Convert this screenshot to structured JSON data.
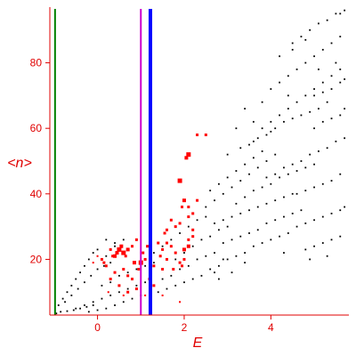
{
  "chart_data": {
    "type": "scatter",
    "xlabel": "E",
    "ylabel": "<n>",
    "xlim": [
      -1.1,
      5.8
    ],
    "ylim": [
      3,
      97
    ],
    "x_ticks": [
      0,
      2,
      4
    ],
    "y_ticks": [
      20,
      40,
      60,
      80
    ],
    "grid": false,
    "colors": {
      "axis": "#e00000",
      "black_series": "#000000",
      "red_series": "#ff0000",
      "line_green": "#008000",
      "line_magenta": "#cc00cc",
      "line_blue": "#0000ff"
    },
    "vertical_lines": [
      {
        "x": -0.98,
        "color": "#008000"
      },
      {
        "x": 1.0,
        "color": "#cc00cc"
      },
      {
        "x": 1.22,
        "color": "#0000ff"
      }
    ],
    "series": [
      {
        "marker": "small-dot",
        "color": "#000000",
        "points": [
          [
            -0.95,
            3.5
          ],
          [
            -0.85,
            4
          ],
          [
            -0.7,
            4.2
          ],
          [
            -0.55,
            4.5
          ],
          [
            -0.4,
            5
          ],
          [
            -0.25,
            5.5
          ],
          [
            -0.1,
            6
          ],
          [
            -0.9,
            6
          ],
          [
            -0.8,
            8
          ],
          [
            -0.7,
            10
          ],
          [
            -0.6,
            12
          ],
          [
            -0.5,
            14
          ],
          [
            -0.4,
            16
          ],
          [
            -0.3,
            18
          ],
          [
            -0.2,
            20
          ],
          [
            -0.1,
            22
          ],
          [
            0.0,
            23
          ],
          [
            -0.75,
            7
          ],
          [
            -0.6,
            9
          ],
          [
            -0.45,
            11
          ],
          [
            -0.3,
            13
          ],
          [
            -0.15,
            15
          ],
          [
            0.0,
            17
          ],
          [
            0.15,
            18
          ],
          [
            0.3,
            19
          ],
          [
            -0.5,
            5
          ],
          [
            -0.3,
            6
          ],
          [
            -0.1,
            7
          ],
          [
            0.1,
            8
          ],
          [
            0.3,
            9
          ],
          [
            0.5,
            10
          ],
          [
            0.7,
            11
          ],
          [
            0.9,
            12
          ],
          [
            1.1,
            13
          ],
          [
            -0.2,
            4
          ],
          [
            0.0,
            4.5
          ],
          [
            0.2,
            5
          ],
          [
            0.4,
            6
          ],
          [
            0.6,
            7
          ],
          [
            0.8,
            8
          ],
          [
            1.0,
            9
          ],
          [
            0.1,
            12
          ],
          [
            0.3,
            13
          ],
          [
            0.5,
            15
          ],
          [
            0.7,
            16
          ],
          [
            0.9,
            17
          ],
          [
            1.1,
            18
          ],
          [
            1.3,
            19
          ],
          [
            0.2,
            21
          ],
          [
            0.4,
            24
          ],
          [
            0.6,
            26
          ],
          [
            0.2,
            26
          ],
          [
            0.4,
            25
          ],
          [
            1.3,
            22
          ],
          [
            1.5,
            24
          ],
          [
            1.7,
            26
          ],
          [
            1.9,
            28
          ],
          [
            2.1,
            30
          ],
          [
            2.3,
            32
          ],
          [
            2.5,
            33
          ],
          [
            1.5,
            14
          ],
          [
            1.7,
            15
          ],
          [
            1.9,
            17
          ],
          [
            2.1,
            18
          ],
          [
            2.3,
            20
          ],
          [
            2.5,
            21
          ],
          [
            2.7,
            22
          ],
          [
            1.4,
            10
          ],
          [
            1.6,
            11
          ],
          [
            1.8,
            12
          ],
          [
            2.0,
            13
          ],
          [
            2.2,
            14
          ],
          [
            1.8,
            20
          ],
          [
            2.0,
            22
          ],
          [
            2.2,
            24
          ],
          [
            2.4,
            26
          ],
          [
            2.6,
            27
          ],
          [
            2.8,
            29
          ],
          [
            3.0,
            30
          ],
          [
            2.5,
            36
          ],
          [
            2.7,
            38
          ],
          [
            2.9,
            40
          ],
          [
            3.1,
            42
          ],
          [
            3.3,
            44
          ],
          [
            3.5,
            46
          ],
          [
            3.7,
            48
          ],
          [
            3.9,
            50
          ],
          [
            4.1,
            52
          ],
          [
            2.3,
            38
          ],
          [
            2.6,
            41
          ],
          [
            2.8,
            43
          ],
          [
            3.0,
            45
          ],
          [
            3.2,
            47
          ],
          [
            3.4,
            49
          ],
          [
            3.6,
            51
          ],
          [
            3.8,
            53
          ],
          [
            2.6,
            17
          ],
          [
            2.8,
            18
          ],
          [
            3.0,
            20
          ],
          [
            3.2,
            21
          ],
          [
            3.4,
            22
          ],
          [
            3.6,
            24
          ],
          [
            3.8,
            25
          ],
          [
            4.0,
            26
          ],
          [
            4.2,
            27
          ],
          [
            4.4,
            28
          ],
          [
            2.4,
            15
          ],
          [
            2.7,
            16
          ],
          [
            2.8,
            14
          ],
          [
            3.1,
            16
          ],
          [
            2.7,
            31
          ],
          [
            2.9,
            32
          ],
          [
            3.1,
            33
          ],
          [
            3.3,
            34
          ],
          [
            3.5,
            35
          ],
          [
            3.7,
            36
          ],
          [
            3.9,
            37
          ],
          [
            4.1,
            38
          ],
          [
            4.3,
            39
          ],
          [
            4.5,
            40
          ],
          [
            2.9,
            25
          ],
          [
            3.1,
            26
          ],
          [
            3.3,
            27
          ],
          [
            3.5,
            28
          ],
          [
            3.7,
            29
          ],
          [
            3.9,
            31
          ],
          [
            4.1,
            32
          ],
          [
            4.3,
            33
          ],
          [
            4.5,
            34
          ],
          [
            4.7,
            35
          ],
          [
            3.2,
            37
          ],
          [
            3.4,
            39
          ],
          [
            3.6,
            41
          ],
          [
            3.8,
            42
          ],
          [
            4.0,
            43
          ],
          [
            4.2,
            45
          ],
          [
            4.4,
            46
          ],
          [
            4.6,
            47
          ],
          [
            4.8,
            48
          ],
          [
            5.0,
            49
          ],
          [
            3.5,
            55
          ],
          [
            3.7,
            57
          ],
          [
            3.9,
            58
          ],
          [
            4.1,
            60
          ],
          [
            4.3,
            62
          ],
          [
            4.5,
            63
          ],
          [
            4.7,
            64
          ],
          [
            4.9,
            65
          ],
          [
            5.1,
            66
          ],
          [
            5.3,
            68
          ],
          [
            3.8,
            60
          ],
          [
            4.0,
            62
          ],
          [
            4.2,
            64
          ],
          [
            4.4,
            66
          ],
          [
            4.6,
            68
          ],
          [
            4.8,
            70
          ],
          [
            5.0,
            72
          ],
          [
            5.2,
            74
          ],
          [
            5.4,
            76
          ],
          [
            5.6,
            78
          ],
          [
            4.0,
            72
          ],
          [
            4.2,
            74
          ],
          [
            4.4,
            76
          ],
          [
            4.6,
            78
          ],
          [
            4.8,
            80
          ],
          [
            5.0,
            82
          ],
          [
            5.2,
            84
          ],
          [
            5.4,
            86
          ],
          [
            5.6,
            88
          ],
          [
            4.5,
            86
          ],
          [
            4.7,
            88
          ],
          [
            4.9,
            90
          ],
          [
            5.1,
            92
          ],
          [
            5.3,
            93
          ],
          [
            5.5,
            95
          ],
          [
            5.7,
            96
          ],
          [
            5.6,
            95
          ],
          [
            4.2,
            82
          ],
          [
            4.5,
            84
          ],
          [
            4.8,
            87
          ],
          [
            3.9,
            45
          ],
          [
            4.1,
            46
          ],
          [
            4.3,
            48
          ],
          [
            4.5,
            49
          ],
          [
            4.7,
            50
          ],
          [
            4.9,
            52
          ],
          [
            5.1,
            53
          ],
          [
            5.3,
            54
          ],
          [
            5.5,
            56
          ],
          [
            5.7,
            57
          ],
          [
            4.6,
            40
          ],
          [
            4.8,
            41
          ],
          [
            5.0,
            42
          ],
          [
            5.2,
            43
          ],
          [
            5.4,
            44
          ],
          [
            5.6,
            46
          ],
          [
            4.6,
            30
          ],
          [
            4.8,
            31
          ],
          [
            5.0,
            32
          ],
          [
            5.2,
            33
          ],
          [
            5.4,
            34
          ],
          [
            5.6,
            35
          ],
          [
            5.7,
            36
          ],
          [
            4.8,
            23
          ],
          [
            5.0,
            24
          ],
          [
            5.2,
            25
          ],
          [
            5.4,
            26
          ],
          [
            5.6,
            27
          ],
          [
            5.0,
            60
          ],
          [
            5.2,
            62
          ],
          [
            5.4,
            63
          ],
          [
            5.6,
            64
          ],
          [
            5.7,
            66
          ],
          [
            5.0,
            70
          ],
          [
            5.2,
            71
          ],
          [
            5.4,
            72
          ],
          [
            5.6,
            74
          ],
          [
            5.7,
            75
          ],
          [
            3.0,
            52
          ],
          [
            3.3,
            54
          ],
          [
            3.6,
            56
          ],
          [
            4.0,
            59
          ],
          [
            3.2,
            60
          ],
          [
            3.6,
            62
          ],
          [
            2.9,
            20
          ],
          [
            3.4,
            19
          ],
          [
            4.3,
            22
          ],
          [
            4.9,
            20
          ],
          [
            5.3,
            21
          ],
          [
            3.4,
            66
          ],
          [
            3.8,
            68
          ],
          [
            4.4,
            70
          ],
          [
            5.1,
            78
          ],
          [
            5.5,
            80
          ]
        ]
      },
      {
        "marker": "square",
        "color": "#ff0000",
        "points": [
          [
            0.5,
            23,
            5
          ],
          [
            0.6,
            22,
            5
          ],
          [
            0.4,
            21,
            4
          ],
          [
            0.55,
            24,
            4
          ],
          [
            0.7,
            23,
            4
          ],
          [
            0.45,
            22,
            4
          ],
          [
            0.3,
            23,
            3
          ],
          [
            0.35,
            21,
            3
          ],
          [
            0.65,
            21,
            3
          ],
          [
            1.0,
            19,
            5
          ],
          [
            0.85,
            19,
            4
          ],
          [
            1.1,
            20,
            3
          ],
          [
            0.95,
            17,
            3
          ],
          [
            0.6,
            17,
            3
          ],
          [
            0.4,
            16,
            3
          ],
          [
            0.2,
            18,
            3
          ],
          [
            0.15,
            19,
            3
          ],
          [
            0.8,
            14,
            3
          ],
          [
            0.7,
            15,
            3
          ],
          [
            0.3,
            14,
            3
          ],
          [
            0.5,
            12,
            3
          ],
          [
            0.9,
            11,
            3
          ],
          [
            0.7,
            10,
            3
          ],
          [
            0.6,
            9,
            2
          ],
          [
            0.25,
            10,
            2
          ],
          [
            0.1,
            20,
            3
          ],
          [
            0.0,
            21,
            2
          ],
          [
            -0.1,
            19,
            2
          ],
          [
            0.9,
            26,
            3
          ],
          [
            0.8,
            24,
            3
          ],
          [
            1.05,
            22,
            3
          ],
          [
            1.15,
            24,
            3
          ],
          [
            1.5,
            23,
            3
          ],
          [
            1.6,
            25,
            3
          ],
          [
            1.7,
            24,
            3
          ],
          [
            1.4,
            25,
            3
          ],
          [
            1.45,
            21,
            3
          ],
          [
            1.6,
            20,
            3
          ],
          [
            1.8,
            22,
            3
          ],
          [
            2.0,
            23,
            4
          ],
          [
            2.1,
            24,
            4
          ],
          [
            1.9,
            19,
            3
          ],
          [
            2.0,
            20,
            3
          ],
          [
            1.95,
            18,
            3
          ],
          [
            1.75,
            17,
            3
          ],
          [
            1.3,
            18,
            3
          ],
          [
            1.5,
            17,
            3
          ],
          [
            1.7,
            32,
            3
          ],
          [
            1.8,
            30,
            3
          ],
          [
            1.6,
            29,
            3
          ],
          [
            1.55,
            28,
            3
          ],
          [
            1.9,
            31,
            3
          ],
          [
            1.9,
            44,
            5
          ],
          [
            2.0,
            38,
            4
          ],
          [
            1.95,
            36,
            3
          ],
          [
            2.1,
            36,
            3
          ],
          [
            2.2,
            34,
            3
          ],
          [
            2.3,
            38,
            3
          ],
          [
            2.1,
            52,
            5
          ],
          [
            2.05,
            51,
            4
          ],
          [
            2.3,
            58,
            3
          ],
          [
            2.5,
            58,
            3
          ],
          [
            2.1,
            33,
            3
          ],
          [
            2.2,
            29,
            3
          ],
          [
            2.2,
            27,
            3
          ],
          [
            2.1,
            26,
            3
          ],
          [
            1.3,
            12,
            3
          ],
          [
            1.2,
            14,
            3
          ],
          [
            1.1,
            9,
            2
          ],
          [
            1.9,
            7,
            2
          ],
          [
            1.5,
            9,
            2
          ]
        ]
      }
    ]
  }
}
